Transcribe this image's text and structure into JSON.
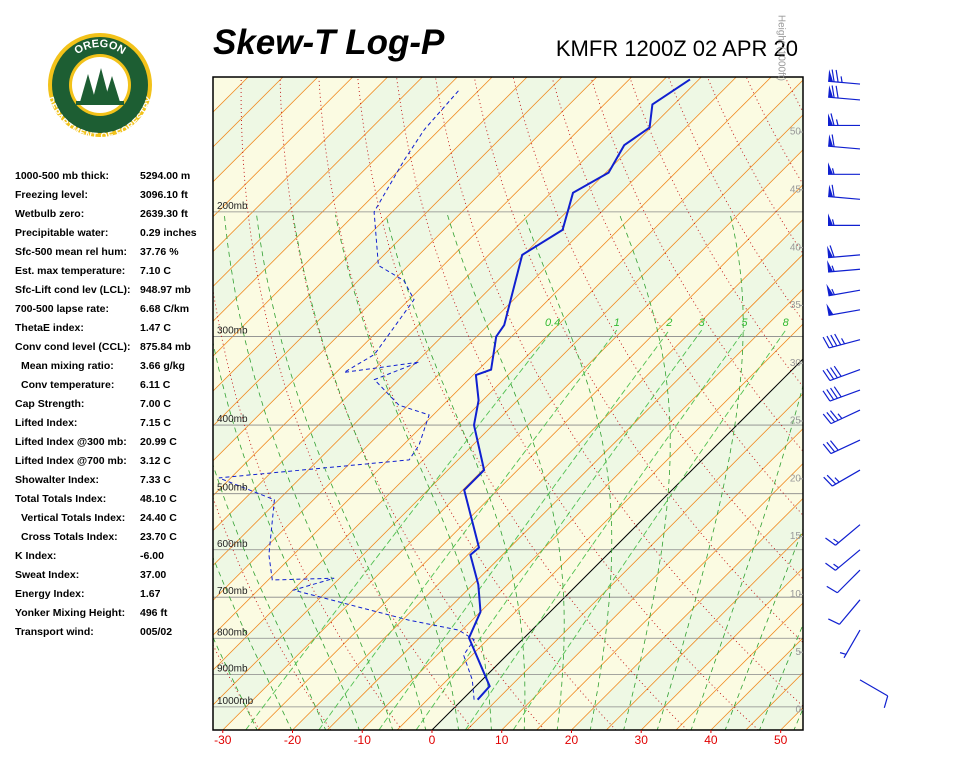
{
  "logo": {
    "top": "OREGON",
    "bottom": "DEPARTMENT OF FORESTRY"
  },
  "indices": [
    [
      "1000-500 mb thick:",
      "5294.00 m"
    ],
    [
      "Freezing level:",
      "3096.10 ft"
    ],
    [
      "Wetbulb zero:",
      "2639.30 ft"
    ],
    [
      "Precipitable water:",
      "0.29 inches"
    ],
    [
      "Sfc-500 mean rel hum:",
      "37.76 %"
    ],
    [
      "Est. max temperature:",
      "7.10 C"
    ],
    [
      "Sfc-Lift cond lev (LCL):",
      "948.97 mb"
    ],
    [
      "700-500 lapse rate:",
      "6.68 C/km"
    ],
    [
      "ThetaE index:",
      "1.47 C"
    ],
    [
      "Conv cond level (CCL):",
      "875.84 mb"
    ],
    [
      "Mean mixing ratio:",
      "3.66 g/kg"
    ],
    [
      "Conv temperature:",
      "6.11 C"
    ],
    [
      "Cap Strength:",
      "7.00 C"
    ],
    [
      "Lifted Index:",
      "7.15 C"
    ],
    [
      "Lifted Index @300 mb:",
      "20.99 C"
    ],
    [
      "Lifted Index @700 mb:",
      "3.12 C"
    ],
    [
      "Showalter Index:",
      "7.33 C"
    ],
    [
      "Total Totals Index:",
      "48.10 C"
    ],
    [
      "Vertical Totals Index:",
      "24.40 C"
    ],
    [
      "Cross Totals Index:",
      "23.70 C"
    ],
    [
      "K Index:",
      "-6.00"
    ],
    [
      "Sweat Index:",
      "37.00"
    ],
    [
      "Energy Index:",
      "1.67"
    ],
    [
      "Yonker Mixing Height:",
      "496 ft"
    ],
    [
      "Transport wind:",
      "005/02"
    ]
  ],
  "chart_data": {
    "type": "skewt",
    "title": "Skew-T Log-P",
    "subtitle": "KMFR 1200Z 02 APR 20",
    "xlim": [
      -31.4,
      53.2
    ],
    "xticks": [
      -30,
      -20,
      -10,
      0,
      10,
      20,
      30,
      40,
      50
    ],
    "ylim": [
      1078,
      129
    ],
    "log_y": true,
    "yticks": [
      {
        "value": 1000,
        "label": "1000mb"
      },
      {
        "value": 900,
        "label": "900mb"
      },
      {
        "value": 800,
        "label": "800mb"
      },
      {
        "value": 700,
        "label": "700mb"
      },
      {
        "value": 600,
        "label": "600mb"
      },
      {
        "value": 500,
        "label": "500mb"
      },
      {
        "value": 400,
        "label": "400mb"
      },
      {
        "value": 300,
        "label": "300mb"
      },
      {
        "value": 200,
        "label": "200mb"
      }
    ],
    "y2label": "Height (1000ft)",
    "y2lim": [
      -1.73,
      54.76
    ],
    "y2ticks": [
      0,
      5,
      10,
      15,
      20,
      25,
      30,
      35,
      40,
      45,
      50
    ],
    "mixing_ratio_lines": [
      0.4,
      1,
      2,
      3,
      5,
      8
    ],
    "series": [
      {
        "color": "#1020d0",
        "dash": false,
        "pressure": [
          977,
          935,
          872,
          799,
          734,
          672,
          610,
          596,
          494,
          463,
          400,
          369,
          340,
          334,
          300,
          289,
          230,
          212,
          188,
          176,
          161,
          152,
          141,
          130
        ],
        "values": [
          2.2,
          2.0,
          -2.4,
          -7.9,
          -10.0,
          -14.2,
          -19.6,
          -19.4,
          -29.8,
          -29.8,
          -37.7,
          -40.6,
          -44.6,
          -43.2,
          -47.2,
          -47.7,
          -55.2,
          -53.0,
          -56.8,
          -54.6,
          -56.3,
          -55.2,
          -58.1,
          -56.3
        ]
      },
      {
        "color": "#1020d0",
        "dash": true,
        "pressure": [
          977,
          916,
          845,
          804,
          779,
          754,
          684,
          658,
          662,
          610,
          510,
          475,
          448,
          427,
          387,
          375,
          345,
          326,
          337,
          318,
          266,
          250,
          238,
          200,
          169,
          153,
          134
        ],
        "values": [
          1.7,
          -1.4,
          -6.2,
          -6.9,
          -10.5,
          -19.1,
          -39.9,
          -35.8,
          -44.4,
          -48.5,
          -55.6,
          -66.7,
          -42.0,
          -42.7,
          -45.6,
          -51.3,
          -58.5,
          -54.6,
          -63.9,
          -62.1,
          -64.3,
          -68.5,
          -74.3,
          -82.6,
          -85.7,
          -87.2,
          -87.9
        ]
      }
    ],
    "winds": {
      "color": "#1020d0",
      "pressure": [
        132,
        139,
        151,
        163,
        177,
        192,
        209,
        230,
        241,
        258,
        275,
        303,
        334,
        357,
        381,
        420,
        463,
        553,
        600,
        641,
        706,
        779,
        916
      ],
      "direction": [
        275,
        275,
        270,
        275,
        270,
        275,
        270,
        265,
        265,
        260,
        260,
        255,
        250,
        250,
        245,
        245,
        240,
        230,
        230,
        225,
        220,
        210,
        120
      ],
      "speed": [
        75,
        70,
        65,
        60,
        55,
        60,
        55,
        60,
        55,
        55,
        50,
        45,
        40,
        40,
        35,
        30,
        25,
        15,
        15,
        10,
        10,
        5,
        10
      ]
    }
  }
}
